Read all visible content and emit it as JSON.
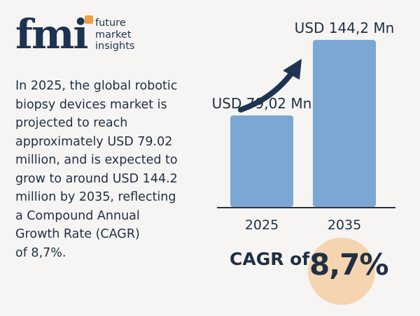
{
  "brand": {
    "mark": "fmi",
    "words": [
      "future",
      "market",
      "insights"
    ],
    "accent_color": "#f0a040"
  },
  "description_lines": [
    "In 2025, the global robotic",
    "biopsy devices market is",
    "projected to reach",
    "approximately USD 79.02",
    "million, and is expected to",
    "grow to around USD 144.2",
    "million by 2035, reflecting",
    "a Compound Annual",
    "Growth Rate (CAGR)",
    "of 8,7%."
  ],
  "chart_data": {
    "type": "bar",
    "categories": [
      "2025",
      "2035"
    ],
    "values": [
      79.02,
      144.2
    ],
    "data_labels": [
      "USD 79,02 Mn",
      "USD 144,2 Mn"
    ],
    "ylim": [
      0,
      160
    ],
    "grid": false,
    "bar_color": "#7ba7d4",
    "arrow_color": "#1e3352"
  },
  "cagr": {
    "prefix": "CAGR of",
    "value": "8,7%",
    "badge_color": "#f5d5b0"
  }
}
